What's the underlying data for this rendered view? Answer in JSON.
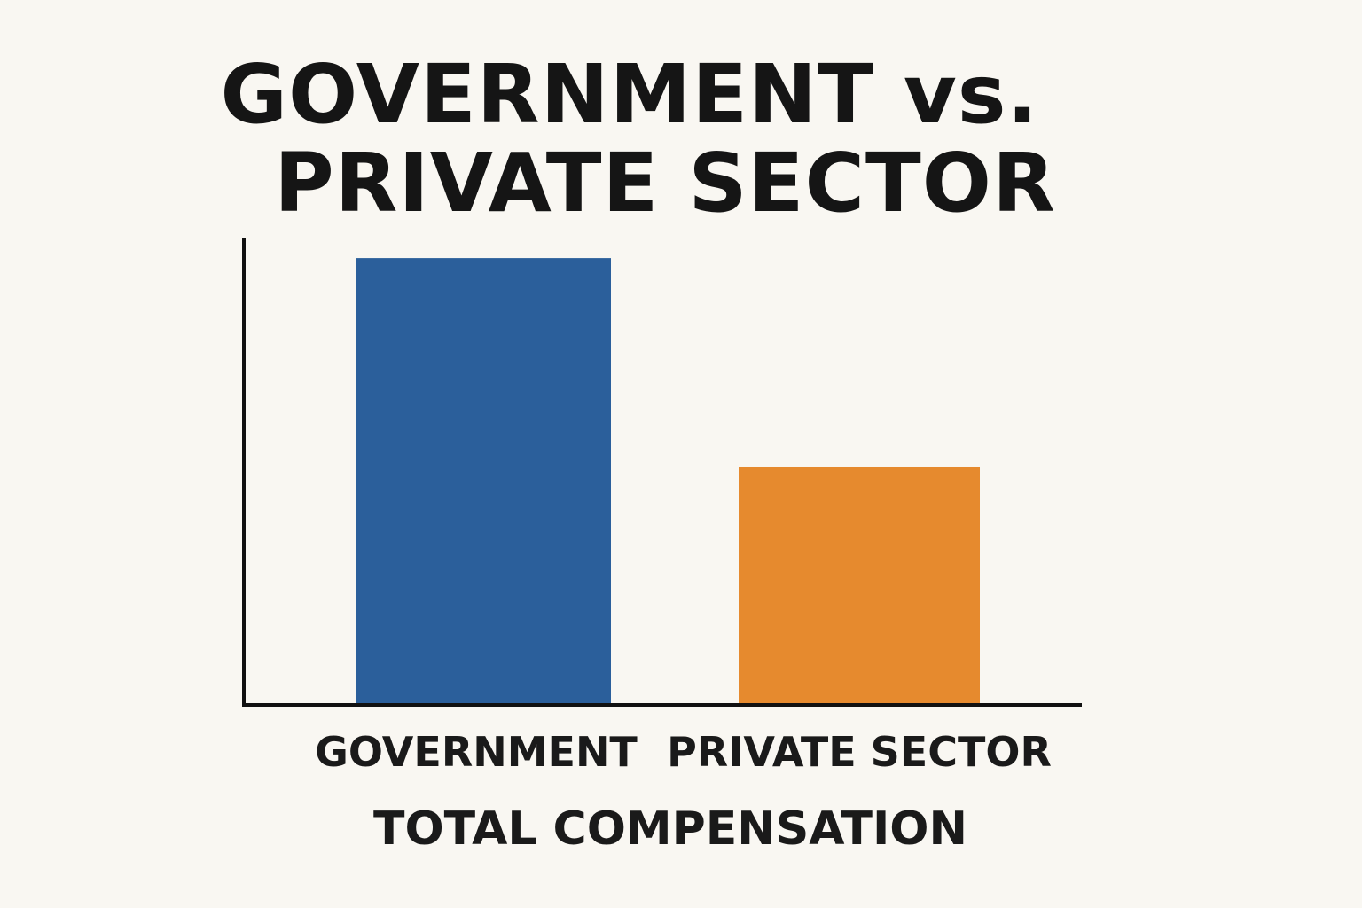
{
  "chart_data": {
    "type": "bar",
    "title_lines": [
      "GOVERNMENT vs.",
      "PRIVATE SECTOR"
    ],
    "categories": [
      "GOVERNMENT",
      "PRIVATE SECTOR"
    ],
    "values": [
      100,
      53
    ],
    "xlabel": "TOTAL COMPENSATION",
    "ylabel": "",
    "ylim": [
      0,
      105
    ],
    "grid": false,
    "colors": [
      "#2b5f9b",
      "#e68a2e"
    ]
  }
}
